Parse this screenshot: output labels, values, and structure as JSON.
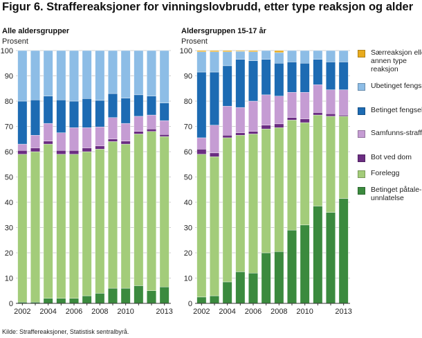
{
  "figure": {
    "title": "Figur 6. Straffereaksjoner for vinningslovbrudd, etter type reaksjon og alder",
    "source": "Kilde: Straffereaksjoner, Statistisk sentralbyrå."
  },
  "chart_data": [
    {
      "type": "stacked-bar",
      "title": "Alle aldersgrupper",
      "ylabel": "Prosent",
      "ylim": [
        0,
        100
      ],
      "yticks": [
        0,
        10,
        20,
        30,
        40,
        50,
        60,
        70,
        80,
        90,
        100
      ],
      "grid": true,
      "categories": [
        "2002",
        "2003",
        "2004",
        "2005",
        "2006",
        "2007",
        "2008",
        "2009",
        "2010",
        "2011",
        "2012",
        "2013"
      ],
      "xtick_labels": [
        "2002",
        "2004",
        "2006",
        "2008",
        "2010",
        "2013"
      ],
      "series": [
        {
          "name": "Betinget påtaleunnlatelse",
          "color": "#3b8a3e",
          "values": [
            0.5,
            0.5,
            2,
            2,
            2,
            3,
            4,
            6,
            6,
            7,
            5,
            6.5
          ]
        },
        {
          "name": "Forelegg",
          "color": "#a3cc7a",
          "values": [
            58.5,
            59.5,
            61,
            57,
            57,
            57,
            57,
            58,
            57,
            60,
            63,
            59.5
          ]
        },
        {
          "name": "Bot ved dom",
          "color": "#6b2d82",
          "values": [
            1.5,
            1.5,
            1.2,
            1.5,
            1.5,
            1.5,
            1.3,
            1,
            1.2,
            1,
            1,
            0.8
          ]
        },
        {
          "name": "Samfunnsstraff",
          "color": "#c59cd3",
          "values": [
            2.5,
            5,
            7,
            7,
            9,
            8,
            7.5,
            8.5,
            7,
            6,
            5.5,
            5.5
          ]
        },
        {
          "name": "Betinget fengsel",
          "color": "#1d6bb3",
          "values": [
            17,
            14,
            10.8,
            13,
            10.5,
            11.5,
            10.5,
            9.5,
            10,
            8.5,
            7.5,
            7
          ]
        },
        {
          "name": "Ubetinget fengsel",
          "color": "#8dbde6",
          "values": [
            20,
            19.5,
            18,
            19.5,
            20,
            19,
            19.7,
            17,
            18.8,
            17.5,
            18,
            20.7
          ]
        },
        {
          "name": "Særreaksjon eller annen type reaksjon",
          "color": "#e8ab1e",
          "values": [
            0,
            0,
            0,
            0,
            0,
            0,
            0,
            0,
            0,
            0,
            0,
            0
          ]
        }
      ]
    },
    {
      "type": "stacked-bar",
      "title": "Aldersgruppen 15-17 år",
      "ylabel": "Prosent",
      "ylim": [
        0,
        100
      ],
      "yticks": [
        0,
        10,
        20,
        30,
        40,
        50,
        60,
        70,
        80,
        90,
        100
      ],
      "grid": true,
      "categories": [
        "2002",
        "2003",
        "2004",
        "2005",
        "2006",
        "2007",
        "2008",
        "2009",
        "2010",
        "2011",
        "2012",
        "2013"
      ],
      "xtick_labels": [
        "2002",
        "2004",
        "2006",
        "2008",
        "2010",
        "2013"
      ],
      "series": [
        {
          "name": "Betinget påtaleunnlatelse",
          "color": "#3b8a3e",
          "values": [
            2.5,
            3,
            8.5,
            12.5,
            12,
            20,
            20.5,
            29,
            31,
            38.5,
            36,
            41.5
          ]
        },
        {
          "name": "Forelegg",
          "color": "#a3cc7a",
          "values": [
            56.5,
            55,
            57,
            54,
            55,
            49,
            49,
            43.5,
            40.5,
            36,
            38,
            32.5
          ]
        },
        {
          "name": "Bot ved dom",
          "color": "#6b2d82",
          "values": [
            2,
            1.5,
            1,
            1,
            1,
            1.5,
            1.5,
            1,
            1.5,
            1,
            1,
            0.5
          ]
        },
        {
          "name": "Samfunnsstraff",
          "color": "#c59cd3",
          "values": [
            4.5,
            11,
            11.5,
            10,
            12,
            12,
            11,
            10,
            10.5,
            11,
            9.5,
            10
          ]
        },
        {
          "name": "Betinget fengsel",
          "color": "#1d6bb3",
          "values": [
            26,
            21,
            16,
            19,
            16,
            14,
            13,
            12,
            11.5,
            10,
            11,
            11
          ]
        },
        {
          "name": "Ubetinget fengsel",
          "color": "#8dbde6",
          "values": [
            8,
            8,
            5.5,
            3.2,
            3.5,
            3.5,
            4.2,
            4.5,
            5,
            3.5,
            4.5,
            4.5
          ]
        },
        {
          "name": "Særreaksjon eller annen type reaksjon",
          "color": "#e8ab1e",
          "values": [
            0.5,
            0.5,
            0.5,
            0.3,
            0.5,
            0,
            0.8,
            0,
            0,
            0,
            0,
            0
          ]
        }
      ]
    }
  ],
  "legend": [
    {
      "label": "Særreaksjon eller annen type reaksjon",
      "color": "#e8ab1e"
    },
    {
      "label": "Ubetinget fengsel",
      "color": "#8dbde6"
    },
    {
      "label": "Betinget fengsel",
      "color": "#1d6bb3"
    },
    {
      "label": "Samfunns-straff",
      "color": "#c59cd3"
    },
    {
      "label": "Bot ved dom",
      "color": "#6b2d82"
    },
    {
      "label": "Forelegg",
      "color": "#a3cc7a"
    },
    {
      "label": "Betinget påtale-unnlatelse",
      "color": "#3b8a3e"
    }
  ]
}
